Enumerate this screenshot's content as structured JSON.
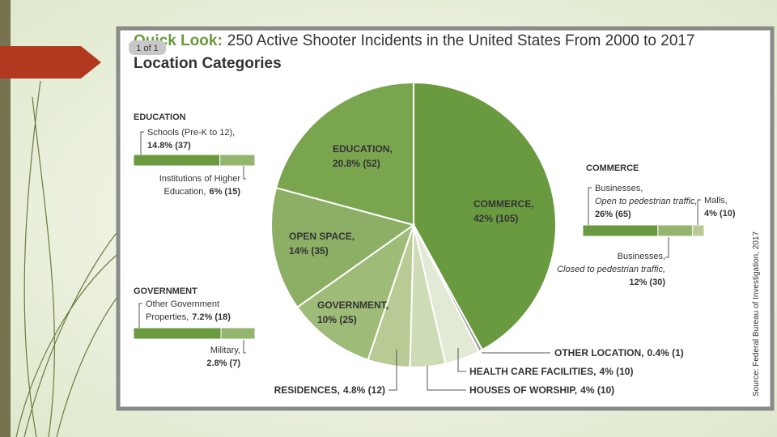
{
  "badge": "1 of 1",
  "chart_data": {
    "type": "pie",
    "title_lead": "Quick Look:",
    "title": "250 Active Shooter Incidents in the United States From 2000 to 2017",
    "subtitle": "Location Categories",
    "source": "Source: Federal Bureau of Investigation, 2017",
    "categories": [
      "COMMERCE,",
      "OTHER LOCATION,",
      "HEALTH CARE FACILITIES,",
      "HOUSES OF WORSHIP,",
      "RESIDENCES,",
      "GOVERNMENT,",
      "OPEN SPACE,",
      "EDUCATION,"
    ],
    "values": [
      105,
      1,
      10,
      10,
      12,
      25,
      35,
      52
    ],
    "value_labels": [
      "42% (105)",
      "0.4% (1)",
      "4% (10)",
      "4% (10)",
      "4.8% (12)",
      "10% (25)",
      "14% (35)",
      "20.8% (52)"
    ],
    "colors": [
      "#6a9a3f",
      "#9a9a9a",
      "#e2e9d4",
      "#cddbb6",
      "#b8cb95",
      "#9ebb78",
      "#8daf65",
      "#7aa54f"
    ],
    "breakdowns": [
      {
        "name": "EDUCATION",
        "segments": [
          {
            "label": [
              "Schools (Pre-K to 12),"
            ],
            "value": 37,
            "value_label": "14.8% (37)",
            "color": "#6a9a3f"
          },
          {
            "label": [
              "Institutions of Higher",
              "Education,"
            ],
            "value": 15,
            "value_label": "6% (15)",
            "color": "#94b56e"
          }
        ]
      },
      {
        "name": "COMMERCE",
        "segments": [
          {
            "label": [
              "Businesses,",
              "Open to pedestrian traffic,"
            ],
            "value": 65,
            "value_label": "26% (65)",
            "color": "#6a9a3f"
          },
          {
            "label": [
              "Businesses,",
              "Closed to pedestrian traffic,"
            ],
            "value": 30,
            "value_label": "12% (30)",
            "color": "#94b56e"
          },
          {
            "label": [
              "Malls,"
            ],
            "value": 10,
            "value_label": "4% (10)",
            "color": "#b8cb95"
          }
        ]
      },
      {
        "name": "GOVERNMENT",
        "segments": [
          {
            "label": [
              "Other Government",
              "Properties,"
            ],
            "value": 18,
            "value_label": "7.2% (18)",
            "color": "#6a9a3f"
          },
          {
            "label": [
              "Military,"
            ],
            "value": 7,
            "value_label": "2.8% (7)",
            "color": "#94b56e"
          }
        ]
      }
    ]
  }
}
